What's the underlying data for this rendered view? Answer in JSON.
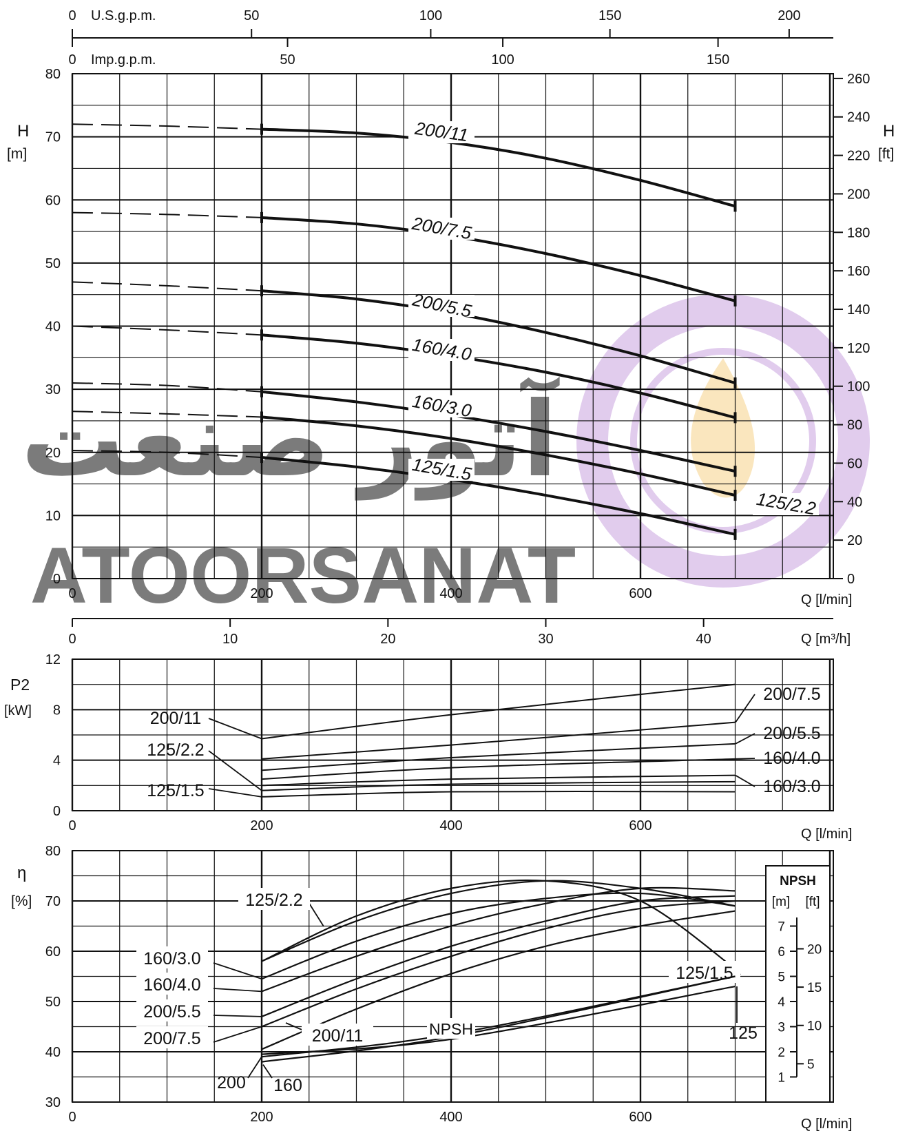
{
  "colors": {
    "ink": "#111111",
    "grid": "#222222",
    "watermark": "#c9a3e0",
    "flame": "#f6d28a"
  },
  "watermark": {
    "persian": "آتور صنعت",
    "latin": "ATOORSANAT"
  },
  "top_scales": {
    "usgpm": {
      "label": "U.S.g.p.m.",
      "ticks": [
        "0",
        "50",
        "100",
        "150",
        "200"
      ]
    },
    "impgpm": {
      "label": "Imp.g.p.m.",
      "ticks": [
        "0",
        "50",
        "100",
        "150"
      ]
    }
  },
  "chart_data": [
    {
      "type": "line",
      "id": "head",
      "ylabel": "H",
      "yunit": "[m]",
      "ylabel_right": "H",
      "yunit_right": "[ft]",
      "xlabel": "Q [l/min]",
      "xlim": [
        0,
        800
      ],
      "ylim": [
        0,
        80
      ],
      "x_ticks": [
        "0",
        "200",
        "400",
        "600"
      ],
      "y_ticks": [
        "0",
        "10",
        "20",
        "30",
        "40",
        "50",
        "60",
        "70",
        "80"
      ],
      "y_ticks_right": [
        "0",
        "20",
        "40",
        "60",
        "80",
        "100",
        "120",
        "140",
        "160",
        "180",
        "200",
        "220",
        "240",
        "260"
      ],
      "m3h_axis": {
        "label": "Q [m³/h]",
        "ticks": [
          "0",
          "10",
          "20",
          "30",
          "40"
        ]
      },
      "grid": true,
      "series": [
        {
          "name": "200/11",
          "dashed": [
            [
              0,
              72
            ],
            [
              100,
              71.7
            ],
            [
              200,
              71.2
            ]
          ],
          "solid": [
            [
              200,
              71.2
            ],
            [
              300,
              70.6
            ],
            [
              400,
              69.1
            ],
            [
              500,
              66.6
            ],
            [
              600,
              63.1
            ],
            [
              700,
              59
            ]
          ]
        },
        {
          "name": "200/7.5",
          "dashed": [
            [
              0,
              58
            ],
            [
              100,
              57.7
            ],
            [
              200,
              57.2
            ]
          ],
          "solid": [
            [
              200,
              57.2
            ],
            [
              300,
              56.2
            ],
            [
              400,
              54.3
            ],
            [
              500,
              51.5
            ],
            [
              600,
              48
            ],
            [
              700,
              44
            ]
          ]
        },
        {
          "name": "200/5.5",
          "dashed": [
            [
              0,
              47
            ],
            [
              100,
              46.4
            ],
            [
              200,
              45.6
            ]
          ],
          "solid": [
            [
              200,
              45.6
            ],
            [
              300,
              44.3
            ],
            [
              400,
              42.1
            ],
            [
              500,
              39
            ],
            [
              600,
              35.3
            ],
            [
              700,
              31
            ]
          ]
        },
        {
          "name": "160/4.0",
          "dashed": [
            [
              0,
              40
            ],
            [
              100,
              39.4
            ],
            [
              200,
              38.6
            ]
          ],
          "solid": [
            [
              200,
              38.6
            ],
            [
              300,
              37.3
            ],
            [
              400,
              35.3
            ],
            [
              500,
              32.7
            ],
            [
              600,
              29.4
            ],
            [
              700,
              25.5
            ]
          ]
        },
        {
          "name": "160/3.0",
          "dashed": [
            [
              0,
              31
            ],
            [
              100,
              30.6
            ],
            [
              200,
              29.6
            ]
          ],
          "solid": [
            [
              200,
              29.6
            ],
            [
              300,
              28
            ],
            [
              400,
              25.9
            ],
            [
              500,
              23.3
            ],
            [
              600,
              20.3
            ],
            [
              700,
              17
            ]
          ]
        },
        {
          "name": "125/2.2",
          "dashed": [
            [
              0,
              26.5
            ],
            [
              100,
              26.1
            ],
            [
              200,
              25.6
            ]
          ],
          "solid": [
            [
              200,
              25.6
            ],
            [
              300,
              24.2
            ],
            [
              400,
              22.2
            ],
            [
              500,
              19.6
            ],
            [
              600,
              16.6
            ],
            [
              700,
              13.2
            ]
          ]
        },
        {
          "name": "125/1.5",
          "dashed": [
            [
              0,
              20.3
            ],
            [
              100,
              20
            ],
            [
              200,
              19.2
            ]
          ],
          "solid": [
            [
              200,
              19.2
            ],
            [
              300,
              17.7
            ],
            [
              400,
              15.7
            ],
            [
              500,
              13.2
            ],
            [
              600,
              10.3
            ],
            [
              700,
              7
            ]
          ]
        }
      ]
    },
    {
      "type": "line",
      "id": "power",
      "ylabel": "P2",
      "yunit": "[kW]",
      "xlabel": "Q [l/min]",
      "xlim": [
        0,
        800
      ],
      "ylim": [
        0,
        12
      ],
      "x_ticks": [
        "0",
        "200",
        "400",
        "600"
      ],
      "y_ticks": [
        "0",
        "4",
        "8",
        "12"
      ],
      "grid": true,
      "series": [
        {
          "name": "200/11",
          "points": [
            [
              200,
              5.7
            ],
            [
              400,
              7.6
            ],
            [
              700,
              10
            ]
          ]
        },
        {
          "name": "200/7.5",
          "points": [
            [
              200,
              4.1
            ],
            [
              400,
              5.2
            ],
            [
              700,
              7
            ]
          ]
        },
        {
          "name": "200/5.5",
          "points": [
            [
              200,
              3.2
            ],
            [
              400,
              4.2
            ],
            [
              700,
              5.3
            ]
          ]
        },
        {
          "name": "160/4.0",
          "points": [
            [
              200,
              2.5
            ],
            [
              400,
              3.4
            ],
            [
              700,
              4.1
            ]
          ]
        },
        {
          "name": "160/3.0",
          "points": [
            [
              200,
              2
            ],
            [
              400,
              2.5
            ],
            [
              700,
              2.8
            ]
          ]
        },
        {
          "name": "125/2.2",
          "points": [
            [
              200,
              1.6
            ],
            [
              400,
              2.1
            ],
            [
              700,
              2.3
            ]
          ]
        },
        {
          "name": "125/1.5",
          "points": [
            [
              200,
              1.1
            ],
            [
              400,
              1.5
            ],
            [
              700,
              1.5
            ]
          ]
        }
      ]
    },
    {
      "type": "line",
      "id": "efficiency",
      "ylabel": "η",
      "yunit": "[%]",
      "xlabel": "Q [l/min]",
      "xlim": [
        0,
        800
      ],
      "ylim": [
        30,
        80
      ],
      "x_ticks": [
        "0",
        "200",
        "400",
        "600"
      ],
      "y_ticks": [
        "30",
        "40",
        "50",
        "60",
        "70",
        "80"
      ],
      "grid": true,
      "series": [
        {
          "name": "125/2.2",
          "points": [
            [
              200,
              58
            ],
            [
              300,
              66
            ],
            [
              400,
              71.5
            ],
            [
              500,
              74
            ],
            [
              600,
              72.5
            ],
            [
              700,
              69
            ]
          ]
        },
        {
          "name": "125/1.5",
          "points": [
            [
              200,
              58
            ],
            [
              300,
              67
            ],
            [
              400,
              72.5
            ],
            [
              500,
              74
            ],
            [
              600,
              70
            ],
            [
              700,
              56.5
            ]
          ]
        },
        {
          "name": "160/3.0",
          "points": [
            [
              200,
              54.5
            ],
            [
              300,
              62
            ],
            [
              400,
              67.5
            ],
            [
              500,
              70.5
            ],
            [
              600,
              71.5
            ],
            [
              700,
              69
            ]
          ]
        },
        {
          "name": "160/4.0",
          "points": [
            [
              200,
              52
            ],
            [
              300,
              59
            ],
            [
              400,
              65
            ],
            [
              500,
              69.5
            ],
            [
              600,
              72.5
            ],
            [
              700,
              72
            ]
          ]
        },
        {
          "name": "200/5.5",
          "points": [
            [
              200,
              47
            ],
            [
              300,
              54.5
            ],
            [
              400,
              61
            ],
            [
              500,
              66
            ],
            [
              600,
              70
            ],
            [
              700,
              71
            ]
          ]
        },
        {
          "name": "200/7.5",
          "points": [
            [
              200,
              45
            ],
            [
              300,
              52.5
            ],
            [
              400,
              59
            ],
            [
              500,
              64.5
            ],
            [
              600,
              68.5
            ],
            [
              700,
              70
            ]
          ]
        },
        {
          "name": "200/11",
          "points": [
            [
              200,
              40.5
            ],
            [
              300,
              48.5
            ],
            [
              400,
              55.5
            ],
            [
              500,
              61
            ],
            [
              600,
              65
            ],
            [
              700,
              68
            ]
          ]
        }
      ],
      "npsh": {
        "label": "NPSH",
        "box_title": "NPSH",
        "units": [
          "[m]",
          "[ft]"
        ],
        "m_ticks": [
          "1",
          "2",
          "3",
          "4",
          "5",
          "6",
          "7"
        ],
        "ft_ticks": [
          "5",
          "10",
          "15",
          "20"
        ],
        "series": [
          {
            "name": "200",
            "points_m": [
              [
                200,
                1.8
              ],
              [
                400,
                2.7
              ],
              [
                700,
                5
              ]
            ]
          },
          {
            "name": "160",
            "points_m": [
              [
                200,
                1.6
              ],
              [
                400,
                2.6
              ],
              [
                700,
                5
              ]
            ]
          },
          {
            "name": "125",
            "points_m": [
              [
                200,
                1.9
              ],
              [
                400,
                2.5
              ],
              [
                700,
                4.6
              ]
            ]
          }
        ]
      }
    }
  ]
}
